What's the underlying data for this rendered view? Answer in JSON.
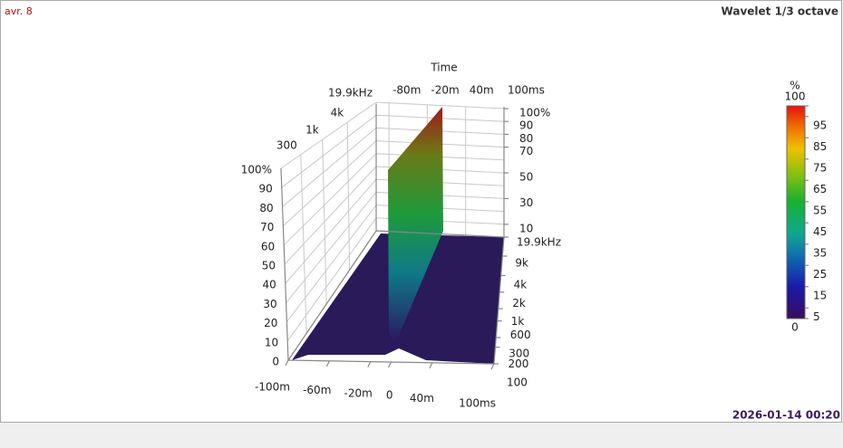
{
  "header": {
    "left": "avr. 8",
    "right": "Wavelet 1/3 octave"
  },
  "footer": {
    "timestamp": "2026-01-14 00:20"
  },
  "chart_data": {
    "type": "wavelet3d",
    "time_axis": {
      "title": "Time",
      "lim": [
        -100,
        100
      ],
      "front_ticks": [
        {
          "value": -100,
          "label": "-100m"
        },
        {
          "value": -60,
          "label": "-60m"
        },
        {
          "value": -20,
          "label": "-20m"
        },
        0,
        {
          "value": 40,
          "label": "40m"
        },
        {
          "value": 100,
          "label": "100ms"
        }
      ],
      "back_ticks": [
        {
          "value": -80,
          "label": "-80m"
        },
        {
          "value": -20,
          "label": "-20m"
        },
        {
          "value": 40,
          "label": "40m"
        },
        {
          "value": 100,
          "label": "100ms"
        }
      ]
    },
    "freq_axis": {
      "lim": [
        100,
        19900
      ],
      "log": true,
      "left_ticks": [
        300,
        {
          "value": 1000,
          "label": "1k"
        },
        {
          "value": 4000,
          "label": "4k"
        },
        {
          "value": 19900,
          "label": "19.9kHz"
        }
      ],
      "right_ticks": [
        {
          "value": 19900,
          "label": "19.9kHz"
        },
        {
          "value": 9000,
          "label": "9k"
        },
        {
          "value": 4000,
          "label": "4k"
        },
        {
          "value": 2000,
          "label": "2k"
        },
        {
          "value": 1000,
          "label": "1k"
        },
        600,
        300,
        200,
        100
      ]
    },
    "level_axis": {
      "lim": [
        0,
        100
      ],
      "left_ticks": [
        0,
        10,
        20,
        30,
        40,
        50,
        60,
        70,
        80,
        90,
        {
          "value": 100,
          "label": "100%"
        }
      ],
      "right_ticks": [
        10,
        30,
        50,
        70,
        80,
        90,
        {
          "value": 100,
          "label": "100%"
        }
      ]
    },
    "colorbar": {
      "label": "%",
      "lim": [
        0,
        100
      ],
      "ticks": [
        0,
        5,
        15,
        25,
        35,
        45,
        55,
        65,
        75,
        85,
        95,
        100
      ]
    }
  }
}
